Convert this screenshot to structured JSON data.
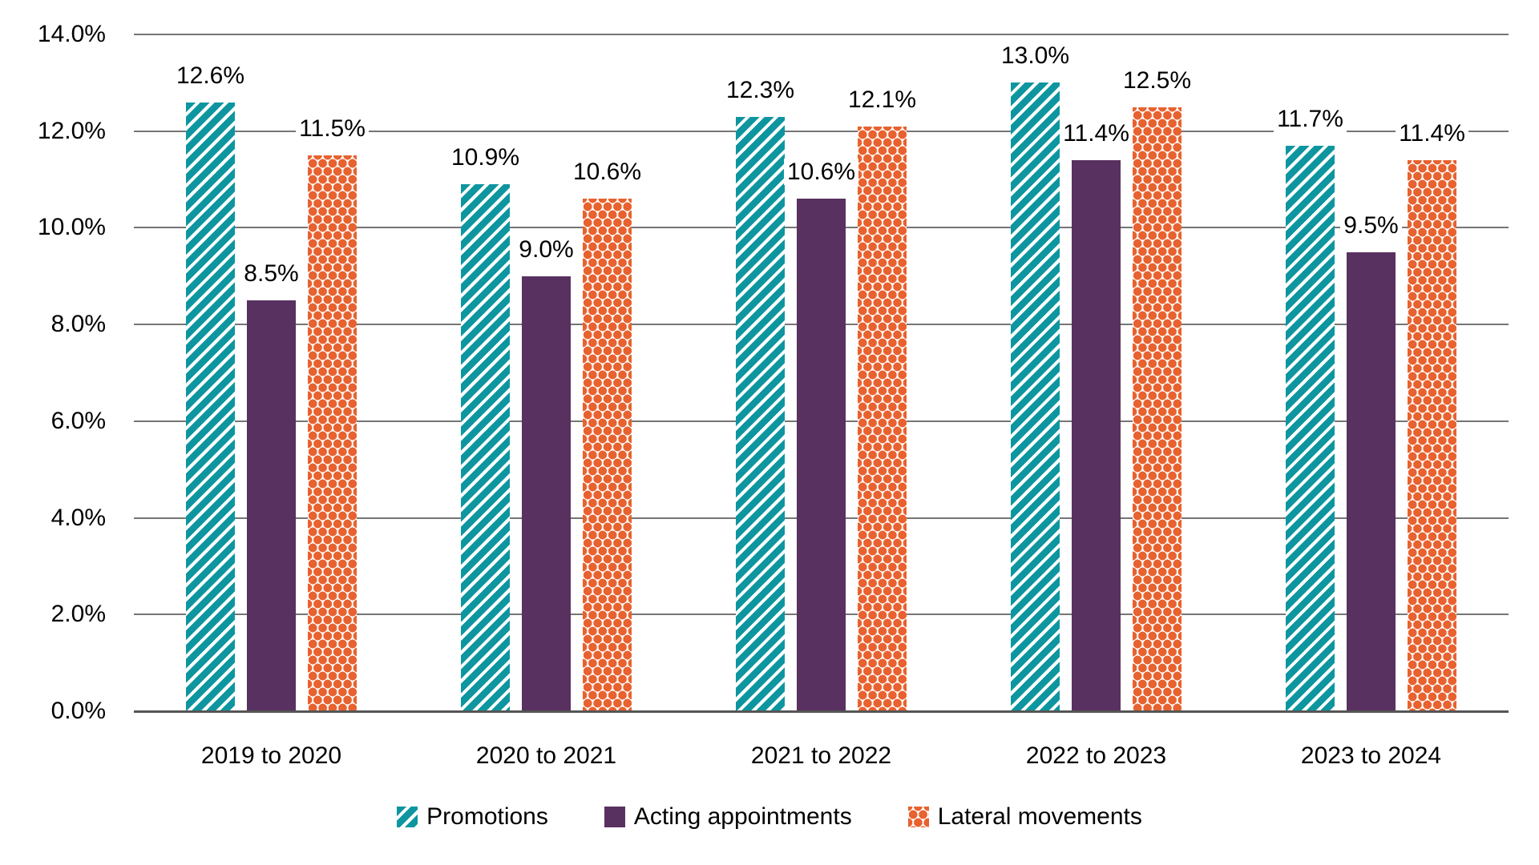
{
  "chart_data": {
    "type": "bar",
    "title": "",
    "xlabel": "",
    "ylabel": "",
    "categories": [
      "2019 to 2020",
      "2020 to 2021",
      "2021 to 2022",
      "2022 to 2023",
      "2023 to 2024"
    ],
    "series": [
      {
        "name": "Promotions",
        "pattern": "stripes",
        "color": "#0E96A0",
        "values": [
          12.6,
          10.9,
          12.3,
          13.0,
          11.7
        ],
        "labels": [
          "12.6%",
          "10.9%",
          "12.3%",
          "13.0%",
          "11.7%"
        ]
      },
      {
        "name": "Acting appointments",
        "pattern": "solid",
        "color": "#583160",
        "values": [
          8.5,
          9.0,
          10.6,
          11.4,
          9.5
        ],
        "labels": [
          "8.5%",
          "9.0%",
          "10.6%",
          "11.4%",
          "9.5%"
        ]
      },
      {
        "name": "Lateral movements",
        "pattern": "dots",
        "color": "#E8622F",
        "values": [
          11.5,
          10.6,
          12.1,
          12.5,
          11.4
        ],
        "labels": [
          "11.5%",
          "10.6%",
          "12.1%",
          "12.5%",
          "11.4%"
        ]
      }
    ],
    "ylim": [
      0,
      14
    ],
    "ytick_step": 2,
    "yticks": [
      "0.0%",
      "2.0%",
      "4.0%",
      "6.0%",
      "8.0%",
      "10.0%",
      "12.0%",
      "14.0%"
    ],
    "grid": true,
    "legend_position": "bottom",
    "gridline_color": "#757575",
    "axis_line_color": "#555555",
    "text_color": "#000000"
  }
}
